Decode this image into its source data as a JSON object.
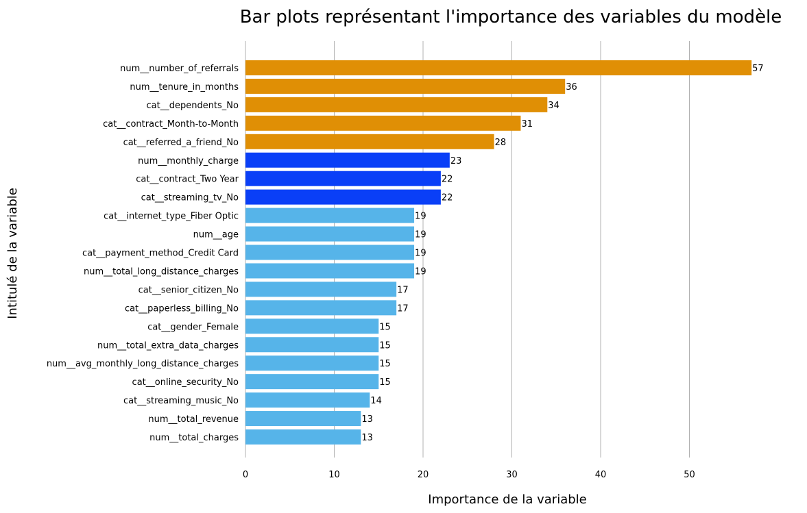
{
  "chart_data": {
    "type": "bar",
    "orientation": "horizontal",
    "title": "Bar plots représentant l'importance des variables du modèle",
    "xlabel": "Importance de la variable",
    "ylabel": "Intitulé de la variable",
    "xlim": [
      0,
      58
    ],
    "xticks": [
      0,
      10,
      20,
      30,
      40,
      50
    ],
    "grid": "vertical",
    "categories": [
      "num__number_of_referrals",
      "num__tenure_in_months",
      "cat__dependents_No",
      "cat__contract_Month-to-Month",
      "cat__referred_a_friend_No",
      "num__monthly_charge",
      "cat__contract_Two Year",
      "cat__streaming_tv_No",
      "cat__internet_type_Fiber Optic",
      "num__age",
      "cat__payment_method_Credit Card",
      "num__total_long_distance_charges",
      "cat__senior_citizen_No",
      "cat__paperless_billing_No",
      "cat__gender_Female",
      "num__total_extra_data_charges",
      "num__avg_monthly_long_distance_charges",
      "cat__online_security_No",
      "cat__streaming_music_No",
      "num__total_revenue",
      "num__total_charges"
    ],
    "values": [
      57,
      36,
      34,
      31,
      28,
      23,
      22,
      22,
      19,
      19,
      19,
      19,
      17,
      17,
      15,
      15,
      15,
      15,
      14,
      13,
      13
    ],
    "bar_colors": [
      "#e08f05",
      "#e08f05",
      "#e08f05",
      "#e08f05",
      "#e08f05",
      "#0a3ff7",
      "#0a3ff7",
      "#0a3ff7",
      "#56b4e9",
      "#56b4e9",
      "#56b4e9",
      "#56b4e9",
      "#56b4e9",
      "#56b4e9",
      "#56b4e9",
      "#56b4e9",
      "#56b4e9",
      "#56b4e9",
      "#56b4e9",
      "#56b4e9",
      "#56b4e9"
    ]
  }
}
